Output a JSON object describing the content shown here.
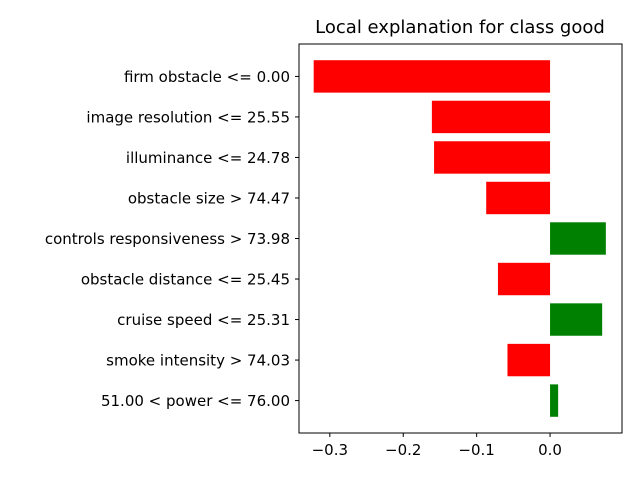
{
  "chart_data": {
    "type": "bar",
    "orientation": "horizontal",
    "title": "Local explanation for class good",
    "xlabel": "",
    "ylabel": "",
    "xlim": [
      -0.342,
      0.098
    ],
    "x_ticks": [
      -0.3,
      -0.2,
      -0.1,
      0.0
    ],
    "x_tick_labels": [
      "−0.3",
      "−0.2",
      "−0.1",
      "0.0"
    ],
    "grid": false,
    "categories": [
      "firm obstacle <= 0.00",
      "image resolution <= 25.55",
      "illuminance <= 24.78",
      "obstacle size > 74.47",
      "controls responsiveness > 73.98",
      "obstacle distance <= 25.45",
      "cruise speed <= 25.31",
      "smoke intensity > 74.03",
      "51.00 < power <= 76.00"
    ],
    "values": [
      -0.322,
      -0.161,
      -0.158,
      -0.087,
      0.076,
      -0.071,
      0.071,
      -0.058,
      0.011
    ],
    "colors": {
      "negative": "#ff0000",
      "positive": "#008000"
    }
  }
}
